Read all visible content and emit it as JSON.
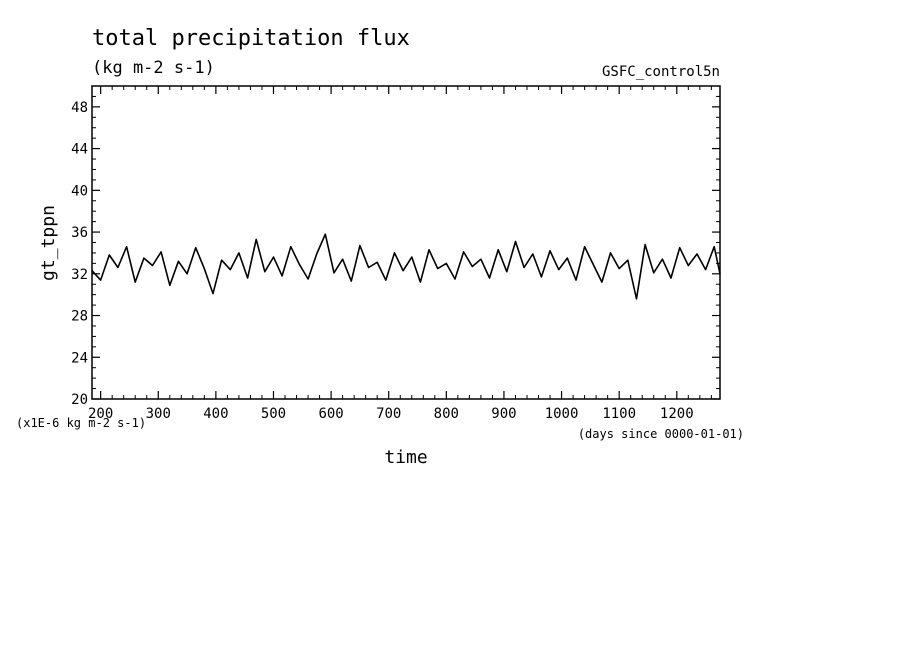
{
  "chart_data": {
    "type": "line",
    "title": "total precipitation flux",
    "subtitle": "(kg m-2 s-1)",
    "experiment": "GSFC_control5n",
    "ylabel": "gt_tppn",
    "xlabel": "time",
    "y_unit_note": "(x1E-6 kg m-2 s-1)",
    "x_unit_note": "(days since 0000-01-01)",
    "xlim": [
      185,
      1275
    ],
    "ylim": [
      20,
      50
    ],
    "x_ticks": [
      200,
      300,
      400,
      500,
      600,
      700,
      800,
      900,
      1000,
      1100,
      1200
    ],
    "x_tick_labels": [
      "200",
      "300",
      "400",
      "500",
      "600",
      "700",
      "800",
      "900",
      "1000",
      "1100",
      "1200"
    ],
    "y_ticks": [
      20,
      24,
      28,
      32,
      36,
      40,
      44,
      48
    ],
    "y_tick_labels": [
      "20",
      "24",
      "28",
      "32",
      "36",
      "40",
      "44",
      "48"
    ],
    "grid": false,
    "series": [
      {
        "color": "#000000",
        "x": [
          185,
          200,
          215,
          230,
          245,
          260,
          275,
          290,
          305,
          320,
          335,
          350,
          365,
          380,
          395,
          410,
          425,
          440,
          455,
          470,
          485,
          500,
          515,
          530,
          545,
          560,
          575,
          590,
          605,
          620,
          635,
          650,
          665,
          680,
          695,
          710,
          725,
          740,
          755,
          770,
          785,
          800,
          815,
          830,
          845,
          860,
          875,
          890,
          905,
          920,
          935,
          950,
          965,
          980,
          995,
          1010,
          1025,
          1040,
          1055,
          1070,
          1085,
          1100,
          1115,
          1130,
          1145,
          1160,
          1175,
          1190,
          1205,
          1220,
          1235,
          1250,
          1265,
          1275
        ],
        "y": [
          32.3,
          31.4,
          33.8,
          32.6,
          34.6,
          31.2,
          33.5,
          32.8,
          34.1,
          30.9,
          33.2,
          32.0,
          34.5,
          32.5,
          30.1,
          33.3,
          32.4,
          34.0,
          31.6,
          35.3,
          32.2,
          33.6,
          31.8,
          34.6,
          32.9,
          31.5,
          33.9,
          35.8,
          32.1,
          33.4,
          31.3,
          34.7,
          32.6,
          33.1,
          31.4,
          34.0,
          32.3,
          33.6,
          31.2,
          34.3,
          32.5,
          33.0,
          31.5,
          34.1,
          32.7,
          33.4,
          31.6,
          34.3,
          32.2,
          35.1,
          32.6,
          33.9,
          31.7,
          34.2,
          32.4,
          33.5,
          31.4,
          34.6,
          32.9,
          31.2,
          34.0,
          32.5,
          33.3,
          29.6,
          34.8,
          32.1,
          33.4,
          31.6,
          34.5,
          32.8,
          33.9,
          32.4,
          34.6,
          32.0
        ]
      }
    ]
  }
}
